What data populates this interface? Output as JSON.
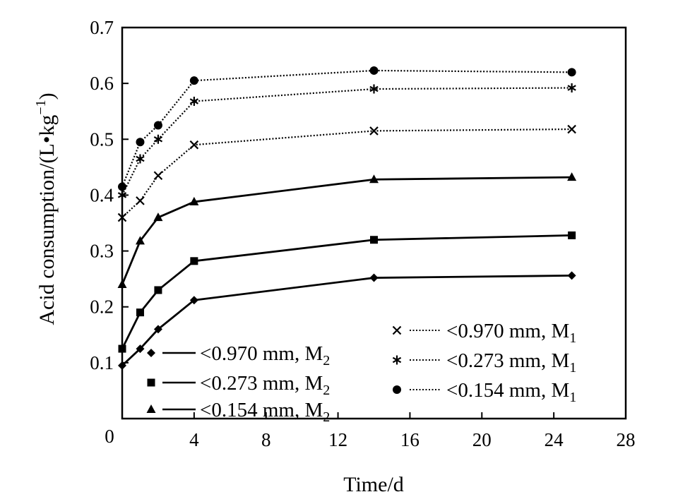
{
  "chart_data": {
    "type": "line",
    "xlabel": "Time/d",
    "ylabel_parts": {
      "main": "Acid consumption/(L•kg",
      "sup": "−1",
      "close": ")"
    },
    "xlim": [
      0,
      28
    ],
    "ylim": [
      0,
      0.7
    ],
    "x_ticks": [
      0,
      4,
      8,
      12,
      16,
      20,
      24,
      28
    ],
    "y_ticks": [
      0.1,
      0.2,
      0.3,
      0.4,
      0.5,
      0.6,
      0.7
    ],
    "x_tick_labels": [
      "4",
      "8",
      "12",
      "16",
      "20",
      "24",
      "28"
    ],
    "y_tick_labels": [
      "0.1",
      "0.2",
      "0.3",
      "0.4",
      "0.5",
      "0.6",
      "0.7"
    ],
    "origin_label": "0",
    "grid": false,
    "series": [
      {
        "name": "<0.970 mm, M2",
        "label_main": "<0.970 mm, M",
        "label_sub": "2",
        "marker": "diamond",
        "line": "solid",
        "x": [
          0,
          1,
          2,
          4,
          14,
          25
        ],
        "y": [
          0.095,
          0.125,
          0.16,
          0.212,
          0.252,
          0.256
        ]
      },
      {
        "name": "<0.273 mm, M2",
        "label_main": "<0.273 mm, M",
        "label_sub": "2",
        "marker": "square",
        "line": "solid",
        "x": [
          0,
          1,
          2,
          4,
          14,
          25
        ],
        "y": [
          0.125,
          0.19,
          0.23,
          0.282,
          0.32,
          0.328
        ]
      },
      {
        "name": "<0.154 mm, M2",
        "label_main": "<0.154 mm, M",
        "label_sub": "2",
        "marker": "triangle",
        "line": "solid",
        "x": [
          0,
          1,
          2,
          4,
          14,
          25
        ],
        "y": [
          0.24,
          0.318,
          0.36,
          0.388,
          0.428,
          0.432
        ]
      },
      {
        "name": "<0.970 mm, M1",
        "label_main": "<0.970 mm, M",
        "label_sub": "1",
        "marker": "x",
        "line": "dotted",
        "x": [
          0,
          1,
          2,
          4,
          14,
          25
        ],
        "y": [
          0.36,
          0.39,
          0.435,
          0.49,
          0.515,
          0.518
        ]
      },
      {
        "name": "<0.273 mm, M1",
        "label_main": "<0.273 mm, M",
        "label_sub": "1",
        "marker": "asterisk",
        "line": "dotted",
        "x": [
          0,
          1,
          2,
          4,
          14,
          25
        ],
        "y": [
          0.4,
          0.465,
          0.5,
          0.568,
          0.59,
          0.592
        ]
      },
      {
        "name": "<0.154 mm, M1",
        "label_main": "<0.154 mm, M",
        "label_sub": "1",
        "marker": "circle",
        "line": "dotted",
        "x": [
          0,
          1,
          2,
          4,
          14,
          25
        ],
        "y": [
          0.415,
          0.495,
          0.525,
          0.605,
          0.623,
          0.62
        ]
      }
    ]
  }
}
